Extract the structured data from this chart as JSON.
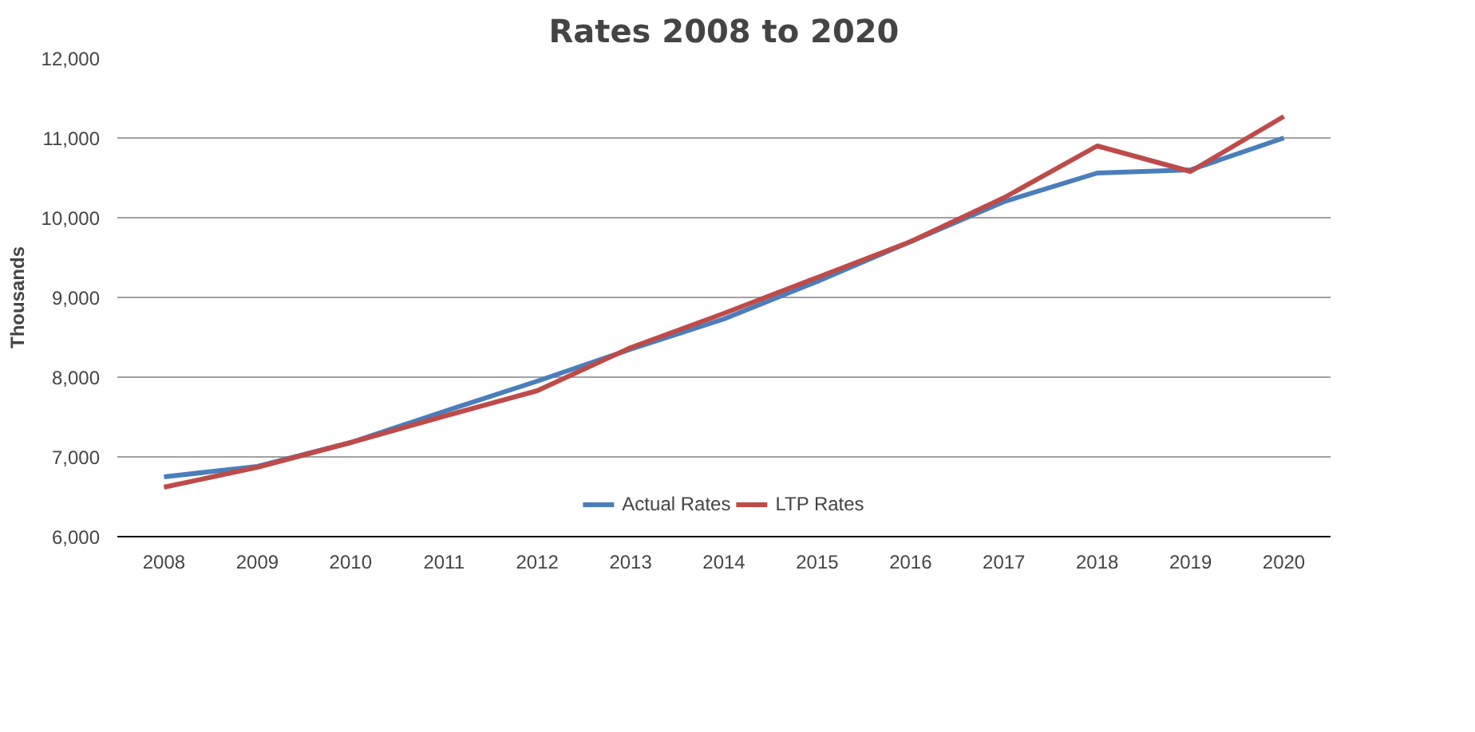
{
  "chart_data": {
    "type": "line",
    "title": "Rates 2008 to 2020",
    "ylabel": "Thousands",
    "categories": [
      "2008",
      "2009",
      "2010",
      "2011",
      "2012",
      "2013",
      "2014",
      "2015",
      "2016",
      "2017",
      "2018",
      "2019",
      "2020"
    ],
    "series": [
      {
        "name": "Actual Rates",
        "color": "#4a7ebb",
        "values": [
          6750,
          6880,
          7180,
          7570,
          7950,
          8350,
          8730,
          9200,
          9700,
          10200,
          10560,
          10600,
          11000
        ]
      },
      {
        "name": "LTP Rates",
        "color": "#be4b48",
        "values": [
          6620,
          6870,
          7180,
          7510,
          7830,
          8370,
          8800,
          9250,
          9700,
          10250,
          10900,
          10580,
          11270
        ]
      }
    ],
    "ylim": [
      6000,
      12000
    ],
    "yticks": [
      {
        "value": 6000,
        "label": "6,000"
      },
      {
        "value": 7000,
        "label": "7,000"
      },
      {
        "value": 8000,
        "label": "8,000"
      },
      {
        "value": 9000,
        "label": "9,000"
      },
      {
        "value": 10000,
        "label": "10,000"
      },
      {
        "value": 11000,
        "label": "11,000"
      },
      {
        "value": 12000,
        "label": "12,000"
      }
    ],
    "grid": "y",
    "legend": "bottom",
    "marker": "none",
    "line_style": "solid"
  }
}
